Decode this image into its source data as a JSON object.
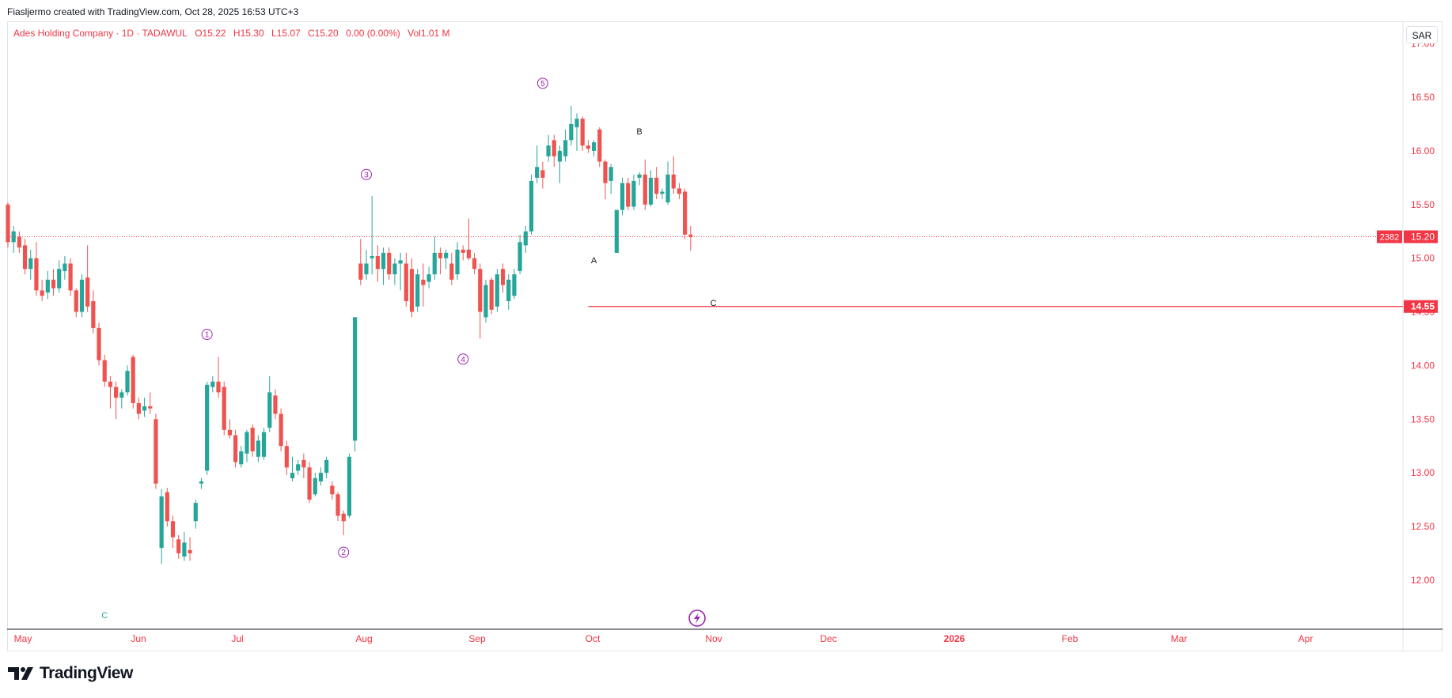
{
  "header": {
    "credit": "Fiasljermo created with TradingView.com, Oct 28, 2025 16:53 UTC+3"
  },
  "legend": {
    "title": "Ades Holding Company · 1D · TADAWUL",
    "open": "O15.22",
    "high": "H15.30",
    "low": "L15.07",
    "close": "C15.20",
    "change": "0.00 (0.00%)",
    "volume": "Vol1.01 M"
  },
  "currency": "SAR",
  "footer": {
    "brand": "TradingView"
  },
  "colors": {
    "up": "#26a69a",
    "down": "#ef5350",
    "accent": "#9c27b0",
    "price_line": "#f23645",
    "axis_text": "#f23645"
  },
  "chart_data": {
    "type": "candlestick",
    "y_axis": {
      "ylim": [
        11.55,
        17.2
      ],
      "ticks": [
        12.0,
        12.5,
        13.0,
        13.5,
        14.0,
        14.5,
        15.0,
        15.5,
        16.0,
        16.5,
        17.0
      ],
      "tick_labels": [
        "12.00",
        "12.50",
        "13.00",
        "13.50",
        "14.00",
        "14.50",
        "15.00",
        "15.50",
        "16.00",
        "16.50",
        "17.00"
      ]
    },
    "x_axis": {
      "labels": [
        "May",
        "Jun",
        "Jul",
        "Aug",
        "Sep",
        "Oct",
        "Nov",
        "Dec",
        "2026",
        "Feb",
        "Mar",
        "Apr"
      ]
    },
    "last_price": {
      "value": 15.2,
      "label": "15.20",
      "volume_label": "2382"
    },
    "horizontal_line": {
      "value": 14.55,
      "label": "14.55"
    },
    "candles": [
      {
        "o": 15.5,
        "h": 15.52,
        "l": 15.1,
        "c": 15.15
      },
      {
        "o": 15.15,
        "h": 15.3,
        "l": 15.05,
        "c": 15.25
      },
      {
        "o": 15.2,
        "h": 15.25,
        "l": 15.05,
        "c": 15.1
      },
      {
        "o": 15.12,
        "h": 15.18,
        "l": 14.85,
        "c": 14.9
      },
      {
        "o": 14.9,
        "h": 15.08,
        "l": 14.8,
        "c": 15.0
      },
      {
        "o": 15.0,
        "h": 15.15,
        "l": 14.65,
        "c": 14.7
      },
      {
        "o": 14.7,
        "h": 14.8,
        "l": 14.6,
        "c": 14.65
      },
      {
        "o": 14.68,
        "h": 14.88,
        "l": 14.62,
        "c": 14.8
      },
      {
        "o": 14.8,
        "h": 14.9,
        "l": 14.65,
        "c": 14.72
      },
      {
        "o": 14.72,
        "h": 14.98,
        "l": 14.68,
        "c": 14.9
      },
      {
        "o": 14.88,
        "h": 15.02,
        "l": 14.8,
        "c": 14.95
      },
      {
        "o": 14.95,
        "h": 15.0,
        "l": 14.65,
        "c": 14.7
      },
      {
        "o": 14.7,
        "h": 14.72,
        "l": 14.45,
        "c": 14.5
      },
      {
        "o": 14.5,
        "h": 14.85,
        "l": 14.45,
        "c": 14.8
      },
      {
        "o": 14.82,
        "h": 15.12,
        "l": 14.5,
        "c": 14.55
      },
      {
        "o": 14.6,
        "h": 14.7,
        "l": 14.3,
        "c": 14.35
      },
      {
        "o": 14.35,
        "h": 14.4,
        "l": 14.0,
        "c": 14.05
      },
      {
        "o": 14.05,
        "h": 14.1,
        "l": 13.8,
        "c": 13.85
      },
      {
        "o": 13.85,
        "h": 13.9,
        "l": 13.6,
        "c": 13.8
      },
      {
        "o": 13.8,
        "h": 13.85,
        "l": 13.5,
        "c": 13.7
      },
      {
        "o": 13.7,
        "h": 13.78,
        "l": 13.6,
        "c": 13.75
      },
      {
        "o": 13.75,
        "h": 14.0,
        "l": 13.72,
        "c": 13.95
      },
      {
        "o": 14.08,
        "h": 14.1,
        "l": 13.6,
        "c": 13.65
      },
      {
        "o": 13.65,
        "h": 13.7,
        "l": 13.5,
        "c": 13.55
      },
      {
        "o": 13.58,
        "h": 13.7,
        "l": 13.52,
        "c": 13.62
      },
      {
        "o": 13.62,
        "h": 13.75,
        "l": 13.55,
        "c": 13.6
      },
      {
        "o": 13.5,
        "h": 13.55,
        "l": 12.85,
        "c": 12.9
      },
      {
        "o": 12.3,
        "h": 12.85,
        "l": 12.15,
        "c": 12.78
      },
      {
        "o": 12.82,
        "h": 12.86,
        "l": 12.5,
        "c": 12.55
      },
      {
        "o": 12.55,
        "h": 12.6,
        "l": 12.3,
        "c": 12.4
      },
      {
        "o": 12.38,
        "h": 12.42,
        "l": 12.2,
        "c": 12.25
      },
      {
        "o": 12.22,
        "h": 12.45,
        "l": 12.18,
        "c": 12.35
      },
      {
        "o": 12.28,
        "h": 12.4,
        "l": 12.18,
        "c": 12.25
      },
      {
        "o": 12.55,
        "h": 12.75,
        "l": 12.48,
        "c": 12.72
      },
      {
        "o": 12.9,
        "h": 12.95,
        "l": 12.85,
        "c": 12.92
      },
      {
        "o": 13.02,
        "h": 13.85,
        "l": 12.98,
        "c": 13.82
      },
      {
        "o": 13.8,
        "h": 13.9,
        "l": 13.75,
        "c": 13.85
      },
      {
        "o": 13.85,
        "h": 14.08,
        "l": 13.7,
        "c": 13.75
      },
      {
        "o": 13.8,
        "h": 13.85,
        "l": 13.35,
        "c": 13.4
      },
      {
        "o": 13.4,
        "h": 13.5,
        "l": 13.32,
        "c": 13.35
      },
      {
        "o": 13.35,
        "h": 13.4,
        "l": 13.05,
        "c": 13.1
      },
      {
        "o": 13.08,
        "h": 13.25,
        "l": 13.05,
        "c": 13.2
      },
      {
        "o": 13.18,
        "h": 13.4,
        "l": 13.1,
        "c": 13.38
      },
      {
        "o": 13.42,
        "h": 13.45,
        "l": 13.15,
        "c": 13.2
      },
      {
        "o": 13.15,
        "h": 13.35,
        "l": 13.1,
        "c": 13.3
      },
      {
        "o": 13.15,
        "h": 13.42,
        "l": 13.12,
        "c": 13.38
      },
      {
        "o": 13.42,
        "h": 13.9,
        "l": 13.38,
        "c": 13.75
      },
      {
        "o": 13.72,
        "h": 13.78,
        "l": 13.5,
        "c": 13.55
      },
      {
        "o": 13.55,
        "h": 13.6,
        "l": 13.2,
        "c": 13.25
      },
      {
        "o": 13.25,
        "h": 13.3,
        "l": 12.98,
        "c": 13.05
      },
      {
        "o": 12.95,
        "h": 13.15,
        "l": 12.92,
        "c": 13.0
      },
      {
        "o": 13.02,
        "h": 13.12,
        "l": 12.98,
        "c": 13.08
      },
      {
        "o": 13.12,
        "h": 13.18,
        "l": 12.95,
        "c": 13.05
      },
      {
        "o": 13.05,
        "h": 13.1,
        "l": 12.72,
        "c": 12.75
      },
      {
        "o": 12.8,
        "h": 13.0,
        "l": 12.78,
        "c": 12.95
      },
      {
        "o": 12.92,
        "h": 13.05,
        "l": 12.88,
        "c": 13.0
      },
      {
        "o": 13.0,
        "h": 13.15,
        "l": 12.95,
        "c": 13.12
      },
      {
        "o": 12.88,
        "h": 12.92,
        "l": 12.75,
        "c": 12.8
      },
      {
        "o": 12.8,
        "h": 12.82,
        "l": 12.55,
        "c": 12.6
      },
      {
        "o": 12.62,
        "h": 12.65,
        "l": 12.42,
        "c": 12.55
      },
      {
        "o": 12.6,
        "h": 13.18,
        "l": 12.58,
        "c": 13.15
      },
      {
        "o": 13.3,
        "h": 14.45,
        "l": 13.2,
        "c": 14.45
      },
      {
        "o": 14.95,
        "h": 15.18,
        "l": 14.75,
        "c": 14.8
      },
      {
        "o": 14.85,
        "h": 15.08,
        "l": 14.8,
        "c": 14.95
      },
      {
        "o": 15.0,
        "h": 15.58,
        "l": 14.85,
        "c": 15.02
      },
      {
        "o": 15.02,
        "h": 15.12,
        "l": 14.78,
        "c": 14.9
      },
      {
        "o": 14.9,
        "h": 15.1,
        "l": 14.75,
        "c": 15.05
      },
      {
        "o": 15.05,
        "h": 15.1,
        "l": 14.8,
        "c": 14.85
      },
      {
        "o": 14.85,
        "h": 15.0,
        "l": 14.75,
        "c": 14.95
      },
      {
        "o": 14.95,
        "h": 15.05,
        "l": 14.7,
        "c": 14.98
      },
      {
        "o": 14.95,
        "h": 15.05,
        "l": 14.55,
        "c": 14.6
      },
      {
        "o": 14.9,
        "h": 15.0,
        "l": 14.45,
        "c": 14.5
      },
      {
        "o": 14.55,
        "h": 14.9,
        "l": 14.5,
        "c": 14.85
      },
      {
        "o": 14.8,
        "h": 14.95,
        "l": 14.55,
        "c": 14.75
      },
      {
        "o": 14.78,
        "h": 14.92,
        "l": 14.72,
        "c": 14.85
      },
      {
        "o": 14.85,
        "h": 15.2,
        "l": 14.8,
        "c": 15.05
      },
      {
        "o": 15.05,
        "h": 15.1,
        "l": 14.85,
        "c": 15.0
      },
      {
        "o": 15.0,
        "h": 15.08,
        "l": 14.9,
        "c": 15.05
      },
      {
        "o": 14.95,
        "h": 15.05,
        "l": 14.75,
        "c": 14.8
      },
      {
        "o": 14.85,
        "h": 15.15,
        "l": 14.8,
        "c": 15.08
      },
      {
        "o": 15.08,
        "h": 15.12,
        "l": 14.98,
        "c": 15.05
      },
      {
        "o": 15.08,
        "h": 15.37,
        "l": 14.98,
        "c": 15.0
      },
      {
        "o": 15.0,
        "h": 15.05,
        "l": 14.85,
        "c": 14.9
      },
      {
        "o": 14.9,
        "h": 14.95,
        "l": 14.25,
        "c": 14.5
      },
      {
        "o": 14.45,
        "h": 14.8,
        "l": 14.4,
        "c": 14.75
      },
      {
        "o": 14.8,
        "h": 14.82,
        "l": 14.48,
        "c": 14.52
      },
      {
        "o": 14.55,
        "h": 14.9,
        "l": 14.5,
        "c": 14.85
      },
      {
        "o": 14.9,
        "h": 14.95,
        "l": 14.68,
        "c": 14.75
      },
      {
        "o": 14.6,
        "h": 14.85,
        "l": 14.52,
        "c": 14.8
      },
      {
        "o": 14.65,
        "h": 14.9,
        "l": 14.62,
        "c": 14.85
      },
      {
        "o": 14.88,
        "h": 15.22,
        "l": 14.85,
        "c": 15.15
      },
      {
        "o": 15.12,
        "h": 15.3,
        "l": 15.05,
        "c": 15.25
      },
      {
        "o": 15.25,
        "h": 15.78,
        "l": 15.22,
        "c": 15.72
      },
      {
        "o": 15.75,
        "h": 16.05,
        "l": 15.7,
        "c": 15.85
      },
      {
        "o": 15.82,
        "h": 15.9,
        "l": 15.65,
        "c": 15.75
      },
      {
        "o": 15.95,
        "h": 16.15,
        "l": 15.9,
        "c": 16.05
      },
      {
        "o": 16.1,
        "h": 16.15,
        "l": 15.85,
        "c": 15.95
      },
      {
        "o": 15.9,
        "h": 16.05,
        "l": 15.7,
        "c": 16.0
      },
      {
        "o": 15.95,
        "h": 16.2,
        "l": 15.9,
        "c": 16.1
      },
      {
        "o": 16.1,
        "h": 16.42,
        "l": 16.05,
        "c": 16.25
      },
      {
        "o": 16.22,
        "h": 16.35,
        "l": 16.0,
        "c": 16.3
      },
      {
        "o": 16.3,
        "h": 16.32,
        "l": 16.0,
        "c": 16.05
      },
      {
        "o": 16.05,
        "h": 16.1,
        "l": 15.98,
        "c": 16.02
      },
      {
        "o": 16.0,
        "h": 16.1,
        "l": 15.95,
        "c": 16.08
      },
      {
        "o": 16.2,
        "h": 16.22,
        "l": 15.85,
        "c": 15.9
      },
      {
        "o": 15.9,
        "h": 15.92,
        "l": 15.55,
        "c": 15.7
      },
      {
        "o": 15.72,
        "h": 15.88,
        "l": 15.6,
        "c": 15.85
      },
      {
        "o": 15.05,
        "h": 15.45,
        "l": 15.05,
        "c": 15.45
      },
      {
        "o": 15.45,
        "h": 15.75,
        "l": 15.4,
        "c": 15.7
      },
      {
        "o": 15.7,
        "h": 15.75,
        "l": 15.45,
        "c": 15.48
      },
      {
        "o": 15.48,
        "h": 15.78,
        "l": 15.45,
        "c": 15.72
      },
      {
        "o": 15.75,
        "h": 15.8,
        "l": 15.68,
        "c": 15.78
      },
      {
        "o": 15.78,
        "h": 15.92,
        "l": 15.45,
        "c": 15.5
      },
      {
        "o": 15.5,
        "h": 15.82,
        "l": 15.48,
        "c": 15.75
      },
      {
        "o": 15.75,
        "h": 15.85,
        "l": 15.55,
        "c": 15.6
      },
      {
        "o": 15.6,
        "h": 15.65,
        "l": 15.55,
        "c": 15.62
      },
      {
        "o": 15.52,
        "h": 15.9,
        "l": 15.5,
        "c": 15.78
      },
      {
        "o": 15.78,
        "h": 15.95,
        "l": 15.6,
        "c": 15.65
      },
      {
        "o": 15.65,
        "h": 15.7,
        "l": 15.55,
        "c": 15.6
      },
      {
        "o": 15.62,
        "h": 15.65,
        "l": 15.18,
        "c": 15.22
      },
      {
        "o": 15.22,
        "h": 15.3,
        "l": 15.07,
        "c": 15.2
      }
    ],
    "annotations": [
      {
        "text": "1",
        "circled": true,
        "index": 35,
        "y": 14.29,
        "color": "#9c27b0"
      },
      {
        "text": "2",
        "circled": true,
        "index": 59,
        "y": 12.26,
        "color": "#9c27b0"
      },
      {
        "text": "3",
        "circled": true,
        "index": 63,
        "y": 15.78,
        "color": "#9c27b0"
      },
      {
        "text": "4",
        "circled": true,
        "index": 80,
        "y": 14.06,
        "color": "#9c27b0"
      },
      {
        "text": "5",
        "circled": true,
        "index": 94,
        "y": 16.63,
        "color": "#9c27b0"
      },
      {
        "text": "A",
        "circled": false,
        "index": 103,
        "y": 14.98,
        "color": "#131722"
      },
      {
        "text": "B",
        "circled": false,
        "index": 111,
        "y": 16.18,
        "color": "#131722"
      },
      {
        "text": "C",
        "circled": false,
        "index": 124,
        "y": 14.58,
        "color": "#131722"
      },
      {
        "text": "C",
        "circled": false,
        "index": 17,
        "y": 11.67,
        "color": "#26a69a"
      }
    ]
  }
}
